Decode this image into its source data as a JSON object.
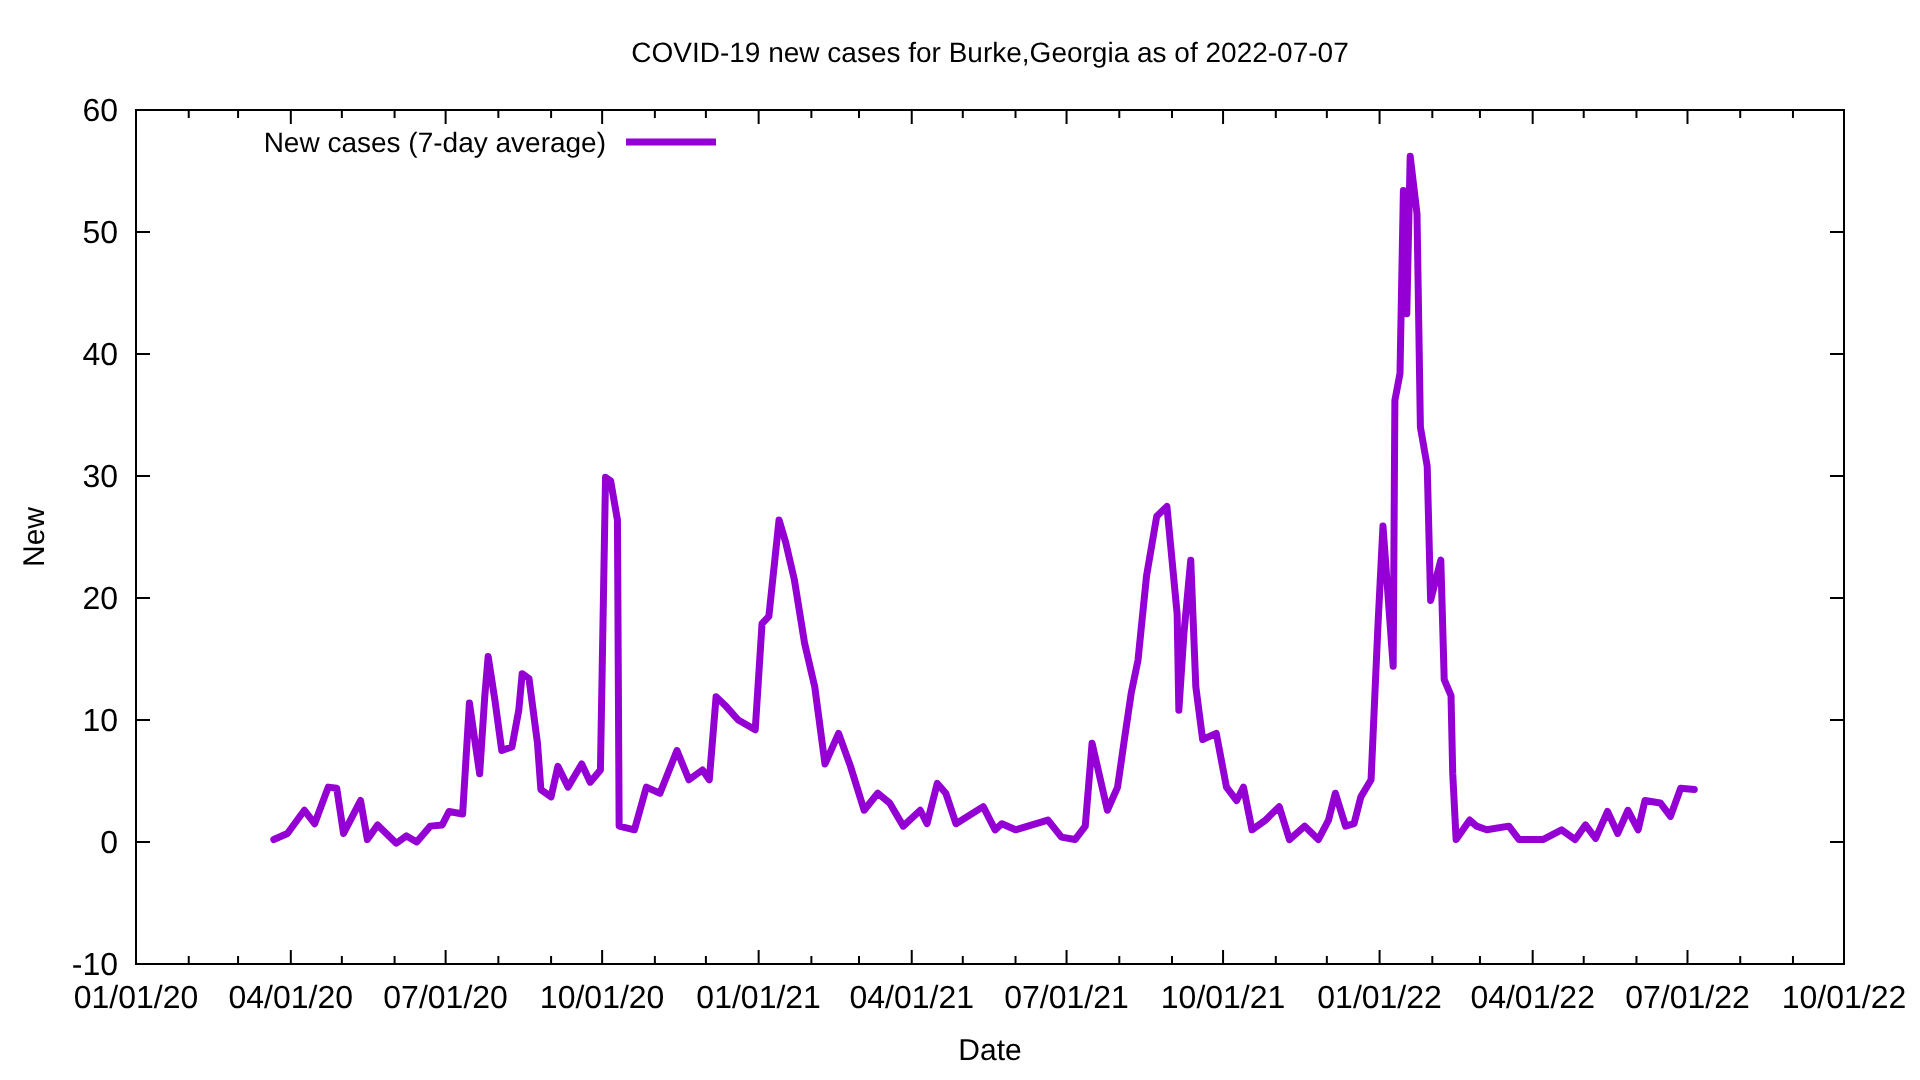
{
  "chart_data": {
    "type": "line",
    "title": "COVID-19 new cases for Burke,Georgia as of 2022-07-07",
    "xlabel": "Date",
    "ylabel": "New",
    "legend": "top left",
    "grid": false,
    "line_style": "solid",
    "marker": "none",
    "xlim": [
      "2020-01-01",
      "2022-10-01"
    ],
    "xticks": [
      {
        "value": "2020-01-01",
        "label": "01/01/20"
      },
      {
        "value": "2020-02-01",
        "label": null
      },
      {
        "value": "2020-03-01",
        "label": null
      },
      {
        "value": "2020-04-01",
        "label": "04/01/20"
      },
      {
        "value": "2020-05-01",
        "label": null
      },
      {
        "value": "2020-06-01",
        "label": null
      },
      {
        "value": "2020-07-01",
        "label": "07/01/20"
      },
      {
        "value": "2020-08-01",
        "label": null
      },
      {
        "value": "2020-09-01",
        "label": null
      },
      {
        "value": "2020-10-01",
        "label": "10/01/20"
      },
      {
        "value": "2020-11-01",
        "label": null
      },
      {
        "value": "2020-12-01",
        "label": null
      },
      {
        "value": "2021-01-01",
        "label": "01/01/21"
      },
      {
        "value": "2021-02-01",
        "label": null
      },
      {
        "value": "2021-03-01",
        "label": null
      },
      {
        "value": "2021-04-01",
        "label": "04/01/21"
      },
      {
        "value": "2021-05-01",
        "label": null
      },
      {
        "value": "2021-06-01",
        "label": null
      },
      {
        "value": "2021-07-01",
        "label": "07/01/21"
      },
      {
        "value": "2021-08-01",
        "label": null
      },
      {
        "value": "2021-09-01",
        "label": null
      },
      {
        "value": "2021-10-01",
        "label": "10/01/21"
      },
      {
        "value": "2021-11-01",
        "label": null
      },
      {
        "value": "2021-12-01",
        "label": null
      },
      {
        "value": "2022-01-01",
        "label": "01/01/22"
      },
      {
        "value": "2022-02-01",
        "label": null
      },
      {
        "value": "2022-03-01",
        "label": null
      },
      {
        "value": "2022-04-01",
        "label": "04/01/22"
      },
      {
        "value": "2022-05-01",
        "label": null
      },
      {
        "value": "2022-06-01",
        "label": null
      },
      {
        "value": "2022-07-01",
        "label": "07/01/22"
      },
      {
        "value": "2022-08-01",
        "label": null
      },
      {
        "value": "2022-09-01",
        "label": null
      },
      {
        "value": "2022-10-01",
        "label": "10/01/22"
      }
    ],
    "ylim": [
      -10,
      60
    ],
    "yticks": [
      -10,
      0,
      10,
      20,
      30,
      40,
      50,
      60
    ],
    "x": [
      "2020-03-22",
      "2020-03-30",
      "2020-04-09",
      "2020-04-15",
      "2020-04-23",
      "2020-04-28",
      "2020-05-02",
      "2020-05-12",
      "2020-05-16",
      "2020-05-22",
      "2020-06-02",
      "2020-06-08",
      "2020-06-14",
      "2020-06-22",
      "2020-06-29",
      "2020-07-03",
      "2020-07-11",
      "2020-07-15",
      "2020-07-21",
      "2020-07-24",
      "2020-07-26",
      "2020-07-30",
      "2020-08-03",
      "2020-08-09",
      "2020-08-13",
      "2020-08-15",
      "2020-08-19",
      "2020-08-24",
      "2020-08-26",
      "2020-09-01",
      "2020-09-05",
      "2020-09-11",
      "2020-09-19",
      "2020-09-24",
      "2020-09-30",
      "2020-10-03",
      "2020-10-06",
      "2020-10-10",
      "2020-10-11",
      "2020-10-20",
      "2020-10-27",
      "2020-11-04",
      "2020-11-14",
      "2020-11-21",
      "2020-11-29",
      "2020-12-03",
      "2020-12-07",
      "2020-12-13",
      "2020-12-20",
      "2020-12-30",
      "2021-01-03",
      "2021-01-07",
      "2021-01-13",
      "2021-01-17",
      "2021-01-22",
      "2021-01-28",
      "2021-02-03",
      "2021-02-09",
      "2021-02-17",
      "2021-02-24",
      "2021-03-04",
      "2021-03-12",
      "2021-03-19",
      "2021-03-27",
      "2021-04-06",
      "2021-04-10",
      "2021-04-16",
      "2021-04-21",
      "2021-04-27",
      "2021-05-13",
      "2021-05-20",
      "2021-05-24",
      "2021-06-01",
      "2021-06-20",
      "2021-06-28",
      "2021-07-06",
      "2021-07-12",
      "2021-07-16",
      "2021-07-25",
      "2021-07-31",
      "2021-08-04",
      "2021-08-08",
      "2021-08-12",
      "2021-08-17",
      "2021-08-23",
      "2021-08-29",
      "2021-09-04",
      "2021-09-05",
      "2021-09-08",
      "2021-09-12",
      "2021-09-15",
      "2021-09-19",
      "2021-09-27",
      "2021-10-03",
      "2021-10-09",
      "2021-10-13",
      "2021-10-18",
      "2021-10-26",
      "2021-11-03",
      "2021-11-09",
      "2021-11-18",
      "2021-11-26",
      "2021-12-02",
      "2021-12-06",
      "2021-12-12",
      "2021-12-17",
      "2021-12-21",
      "2021-12-27",
      "2021-12-31",
      "2022-01-03",
      "2022-01-09",
      "2022-01-10",
      "2022-01-13",
      "2022-01-15",
      "2022-01-17",
      "2022-01-19",
      "2022-01-23",
      "2022-01-25",
      "2022-01-29",
      "2022-01-31",
      "2022-02-06",
      "2022-02-08",
      "2022-02-12",
      "2022-02-13",
      "2022-02-15",
      "2022-02-23",
      "2022-02-27",
      "2022-03-05",
      "2022-03-18",
      "2022-03-24",
      "2022-04-07",
      "2022-04-18",
      "2022-04-26",
      "2022-05-02",
      "2022-05-08",
      "2022-05-15",
      "2022-05-21",
      "2022-05-27",
      "2022-06-02",
      "2022-06-06",
      "2022-06-15",
      "2022-06-21",
      "2022-06-27",
      "2022-07-05"
    ],
    "series": [
      {
        "name": "New cases (7-day average)",
        "color": "#9400d3",
        "values": [
          0.2,
          0.7,
          2.6,
          1.5,
          4.5,
          4.4,
          0.7,
          3.4,
          0.2,
          1.4,
          -0.1,
          0.5,
          0,
          1.3,
          1.4,
          2.5,
          2.3,
          11.4,
          5.6,
          11.9,
          15.2,
          11.6,
          7.5,
          7.8,
          10.8,
          13.8,
          13.4,
          8.1,
          4.3,
          3.7,
          6.2,
          4.5,
          6.4,
          4.9,
          5.9,
          29.9,
          29.6,
          26.4,
          1.3,
          1.0,
          4.5,
          4.0,
          7.5,
          5.1,
          5.9,
          5.1,
          11.9,
          11.1,
          10,
          9.2,
          17.9,
          18.5,
          26.4,
          24.5,
          21.5,
          16.3,
          12.7,
          6.4,
          8.9,
          6.2,
          2.6,
          4.0,
          3.2,
          1.3,
          2.6,
          1.5,
          4.8,
          4.0,
          1.5,
          2.9,
          1.0,
          1.5,
          1.0,
          1.8,
          0.4,
          0.2,
          1.3,
          8.1,
          2.6,
          4.5,
          8.4,
          12.2,
          14.9,
          21.8,
          26.7,
          27.5,
          18.7,
          10.8,
          17.1,
          23.1,
          12.7,
          8.4,
          8.9,
          4.5,
          3.4,
          4.5,
          1.0,
          1.8,
          2.9,
          0.2,
          1.3,
          0.2,
          1.8,
          4.0,
          1.3,
          1.5,
          3.7,
          5.1,
          17.6,
          25.9,
          14.4,
          36.2,
          38.4,
          53.4,
          43.3,
          56.2,
          51.5,
          34.0,
          30.8,
          19.8,
          23.1,
          13.3,
          12,
          5.6,
          0.2,
          1.8,
          1.3,
          1.0,
          1.3,
          0.2,
          0.2,
          1.0,
          0.2,
          1.4,
          0.3,
          2.5,
          0.7,
          2.6,
          1.0,
          3.4,
          3.2,
          2.1,
          4.4,
          4.3
        ]
      }
    ]
  }
}
